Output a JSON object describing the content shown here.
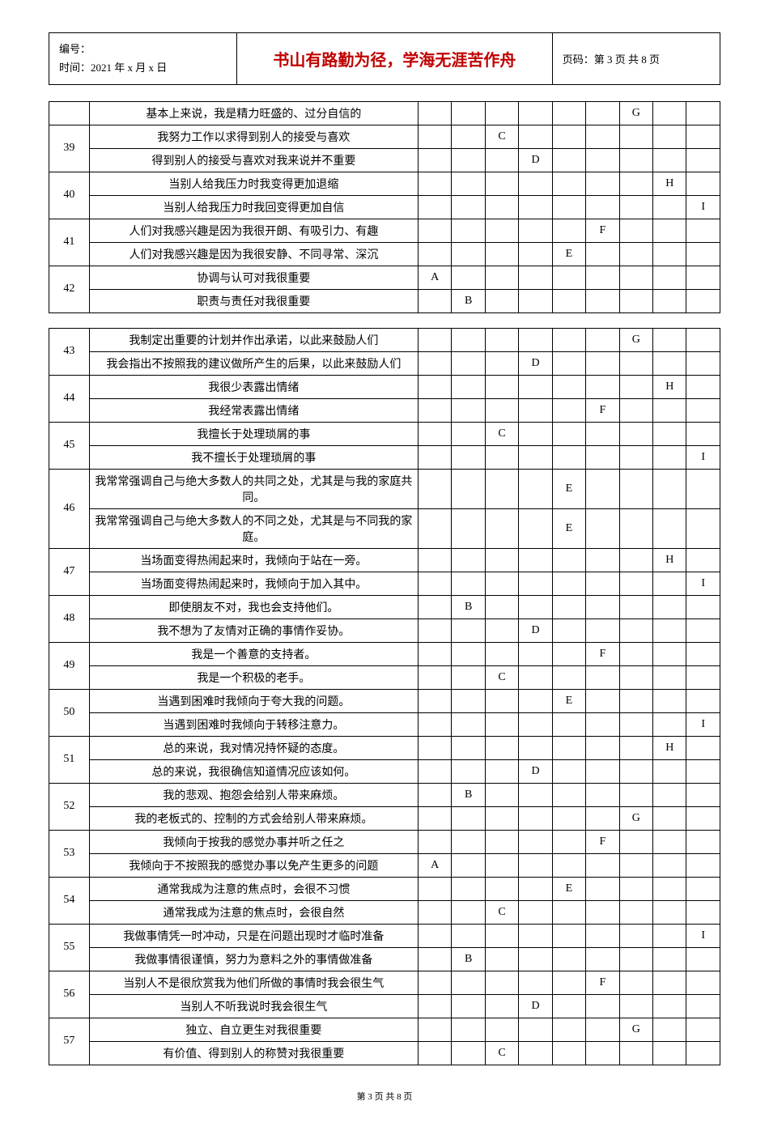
{
  "header": {
    "line1": "编号：",
    "line2": "时间：2021 年 x 月 x 日",
    "title": "书山有路勤为径，学海无涯苦作舟",
    "pageInfo": "页码：第 3 页 共 8 页"
  },
  "styling": {
    "title_color": "#c00000",
    "title_fontsize": 20,
    "body_fontsize": 14,
    "header_fontsize": 13,
    "footer_fontsize": 11,
    "border_color": "#000000",
    "background_color": "#ffffff",
    "answer_cols": 9,
    "col_num_width": "6%",
    "col_text_width": "49%",
    "col_ans_width": "5%"
  },
  "table1": {
    "rows": [
      {
        "num": "",
        "text": "基本上来说，我是精力旺盛的、过分自信的",
        "ans": [
          "",
          "",
          "",
          "",
          "",
          "",
          "G",
          "",
          ""
        ]
      },
      {
        "num": "39",
        "span": 2,
        "text": "我努力工作以求得到别人的接受与喜欢",
        "ans": [
          "",
          "",
          "C",
          "",
          "",
          "",
          "",
          "",
          ""
        ]
      },
      {
        "num": "",
        "text": "得到别人的接受与喜欢对我来说并不重要",
        "ans": [
          "",
          "",
          "",
          "D",
          "",
          "",
          "",
          "",
          ""
        ]
      },
      {
        "num": "40",
        "span": 2,
        "text": "当别人给我压力时我变得更加退缩",
        "ans": [
          "",
          "",
          "",
          "",
          "",
          "",
          "",
          "H",
          ""
        ]
      },
      {
        "num": "",
        "text": "当别人给我压力时我回变得更加自信",
        "ans": [
          "",
          "",
          "",
          "",
          "",
          "",
          "",
          "",
          "I"
        ]
      },
      {
        "num": "41",
        "span": 2,
        "text": "人们对我感兴趣是因为我很开朗、有吸引力、有趣",
        "ans": [
          "",
          "",
          "",
          "",
          "",
          "F",
          "",
          "",
          ""
        ]
      },
      {
        "num": "",
        "text": "人们对我感兴趣是因为我很安静、不同寻常、深沉",
        "ans": [
          "",
          "",
          "",
          "",
          "E",
          "",
          "",
          "",
          ""
        ]
      },
      {
        "num": "42",
        "span": 2,
        "text": "协调与认可对我很重要",
        "ans": [
          "A",
          "",
          "",
          "",
          "",
          "",
          "",
          "",
          ""
        ]
      },
      {
        "num": "",
        "text": "职责与责任对我很重要",
        "ans": [
          "",
          "B",
          "",
          "",
          "",
          "",
          "",
          "",
          ""
        ]
      }
    ]
  },
  "table2": {
    "rows": [
      {
        "num": "43",
        "span": 2,
        "text": "我制定出重要的计划并作出承诺，以此来鼓励人们",
        "ans": [
          "",
          "",
          "",
          "",
          "",
          "",
          "G",
          "",
          ""
        ]
      },
      {
        "num": "",
        "text": "我会指出不按照我的建议做所产生的后果，以此来鼓励人们",
        "ans": [
          "",
          "",
          "",
          "D",
          "",
          "",
          "",
          "",
          ""
        ],
        "merge_d_up": true
      },
      {
        "num": "44",
        "span": 2,
        "text": "我很少表露出情绪",
        "ans": [
          "",
          "",
          "",
          "",
          "",
          "",
          "",
          "H",
          ""
        ]
      },
      {
        "num": "",
        "text": "我经常表露出情绪",
        "ans": [
          "",
          "",
          "",
          "",
          "",
          "F",
          "",
          "",
          ""
        ]
      },
      {
        "num": "45",
        "span": 2,
        "text": "我擅长于处理琐屑的事",
        "ans": [
          "",
          "",
          "C",
          "",
          "",
          "",
          "",
          "",
          ""
        ]
      },
      {
        "num": "",
        "text": "我不擅长于处理琐屑的事",
        "ans": [
          "",
          "",
          "",
          "",
          "",
          "",
          "",
          "",
          "I"
        ]
      },
      {
        "num": "46",
        "span": 2,
        "text": "我常常强调自己与绝大多数人的共同之处，尤其是与我的家庭共同。",
        "ans": [
          "",
          "",
          "",
          "",
          "E",
          "",
          "",
          "",
          ""
        ],
        "tall": true
      },
      {
        "num": "",
        "text": "我常常强调自己与绝大多数人的不同之处，尤其是与不同我的家庭。",
        "ans": [
          "",
          "",
          "",
          "",
          "E",
          "",
          "",
          "",
          ""
        ],
        "tall": true
      },
      {
        "num": "47",
        "span": 2,
        "text": "当场面变得热闹起来时，我倾向于站在一旁。",
        "ans": [
          "",
          "",
          "",
          "",
          "",
          "",
          "",
          "H",
          ""
        ]
      },
      {
        "num": "",
        "text": "当场面变得热闹起来时，我倾向于加入其中。",
        "ans": [
          "",
          "",
          "",
          "",
          "",
          "",
          "",
          "",
          "I"
        ]
      },
      {
        "num": "48",
        "span": 2,
        "text": "即使朋友不对，我也会支持他们。",
        "ans": [
          "",
          "B",
          "",
          "",
          "",
          "",
          "",
          "",
          ""
        ]
      },
      {
        "num": "",
        "text": "我不想为了友情对正确的事情作妥协。",
        "ans": [
          "",
          "",
          "",
          "D",
          "",
          "",
          "",
          "",
          ""
        ]
      },
      {
        "num": "49",
        "span": 2,
        "text": "我是一个善意的支持者。",
        "ans": [
          "",
          "",
          "",
          "",
          "",
          "F",
          "",
          "",
          ""
        ]
      },
      {
        "num": "",
        "text": "我是一个积极的老手。",
        "ans": [
          "",
          "",
          "C",
          "",
          "",
          "",
          "",
          "",
          ""
        ]
      },
      {
        "num": "50",
        "span": 2,
        "text": "当遇到困难时我倾向于夸大我的问题。",
        "ans": [
          "",
          "",
          "",
          "",
          "E",
          "",
          "",
          "",
          ""
        ]
      },
      {
        "num": "",
        "text": "当遇到困难时我倾向于转移注意力。",
        "ans": [
          "",
          "",
          "",
          "",
          "",
          "",
          "",
          "",
          "I"
        ]
      },
      {
        "num": "51",
        "span": 2,
        "text": "总的来说，我对情况持怀疑的态度。",
        "ans": [
          "",
          "",
          "",
          "",
          "",
          "",
          "",
          "H",
          ""
        ]
      },
      {
        "num": "",
        "text": "总的来说，我很确信知道情况应该如何。",
        "ans": [
          "",
          "",
          "",
          "D",
          "",
          "",
          "",
          "",
          ""
        ]
      },
      {
        "num": "52",
        "span": 2,
        "text": "我的悲观、抱怨会给别人带来麻烦。",
        "ans": [
          "",
          "B",
          "",
          "",
          "",
          "",
          "",
          "",
          ""
        ]
      },
      {
        "num": "",
        "text": "我的老板式的、控制的方式会给别人带来麻烦。",
        "ans": [
          "",
          "",
          "",
          "",
          "",
          "",
          "G",
          "",
          ""
        ]
      },
      {
        "num": "53",
        "span": 2,
        "text": "我倾向于按我的感觉办事并听之任之",
        "ans": [
          "",
          "",
          "",
          "",
          "",
          "F",
          "",
          "",
          ""
        ]
      },
      {
        "num": "",
        "text": "我倾向于不按照我的感觉办事以免产生更多的问题",
        "ans": [
          "A",
          "",
          "",
          "",
          "",
          "",
          "",
          "",
          ""
        ]
      },
      {
        "num": "54",
        "span": 2,
        "text": "通常我成为注意的焦点时，会很不习惯",
        "ans": [
          "",
          "",
          "",
          "",
          "E",
          "",
          "",
          "",
          ""
        ]
      },
      {
        "num": "",
        "text": "通常我成为注意的焦点时，会很自然",
        "ans": [
          "",
          "",
          "C",
          "",
          "",
          "",
          "",
          "",
          ""
        ]
      },
      {
        "num": "55",
        "span": 2,
        "text": "我做事情凭一时冲动，只是在问题出现时才临时准备",
        "ans": [
          "",
          "",
          "",
          "",
          "",
          "",
          "",
          "",
          "I"
        ]
      },
      {
        "num": "",
        "text": "我做事情很谨慎，努力为意料之外的事情做准备",
        "ans": [
          "",
          "B",
          "",
          "",
          "",
          "",
          "",
          "",
          ""
        ]
      },
      {
        "num": "56",
        "span": 2,
        "text": "当别人不是很欣赏我为他们所做的事情时我会很生气",
        "ans": [
          "",
          "",
          "",
          "",
          "",
          "F",
          "",
          "",
          ""
        ]
      },
      {
        "num": "",
        "text": "当别人不听我说时我会很生气",
        "ans": [
          "",
          "",
          "",
          "D",
          "",
          "",
          "",
          "",
          ""
        ]
      },
      {
        "num": "57",
        "span": 2,
        "text": "独立、自立更生对我很重要",
        "ans": [
          "",
          "",
          "",
          "",
          "",
          "",
          "G",
          "",
          ""
        ]
      },
      {
        "num": "",
        "text": "有价值、得到别人的称赞对我很重要",
        "ans": [
          "",
          "",
          "C",
          "",
          "",
          "",
          "",
          "",
          ""
        ]
      }
    ]
  },
  "footer": "第 3 页 共 8 页"
}
